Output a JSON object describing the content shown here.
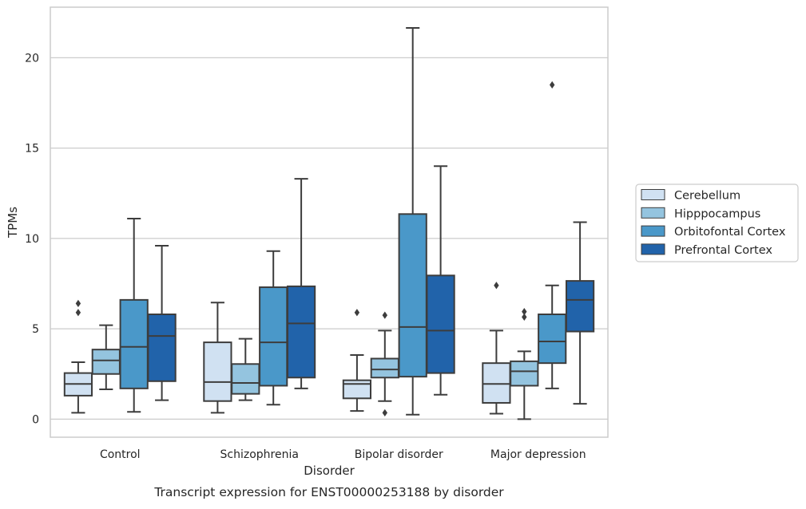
{
  "chart_data": {
    "type": "boxplot",
    "title": "",
    "caption": "Transcript expression for ENST00000253188 by disorder",
    "xlabel": "Disorder",
    "ylabel": "TPMs",
    "ylim": [
      -1.0,
      22.8
    ],
    "yticks": [
      0,
      5,
      10,
      15,
      20
    ],
    "grid": "horizontal",
    "legend_position": "right",
    "categories": [
      "Control",
      "Schizophrenia",
      "Bipolar disorder",
      "Major depression"
    ],
    "series": [
      {
        "name": "Cerebellum",
        "color": "#d0e1f2",
        "boxes": [
          {
            "whisker_low": 0.35,
            "q1": 1.3,
            "median": 1.95,
            "q3": 2.55,
            "whisker_high": 3.15,
            "outliers": [
              5.9,
              6.4
            ]
          },
          {
            "whisker_low": 0.35,
            "q1": 1.0,
            "median": 2.05,
            "q3": 4.25,
            "whisker_high": 6.45,
            "outliers": []
          },
          {
            "whisker_low": 0.45,
            "q1": 1.15,
            "median": 1.95,
            "q3": 2.15,
            "whisker_high": 3.55,
            "outliers": [
              5.9
            ]
          },
          {
            "whisker_low": 0.3,
            "q1": 0.9,
            "median": 1.95,
            "q3": 3.1,
            "whisker_high": 4.9,
            "outliers": [
              7.4
            ]
          }
        ]
      },
      {
        "name": "Hipppocampus",
        "color": "#94c4df",
        "boxes": [
          {
            "whisker_low": 1.65,
            "q1": 2.5,
            "median": 3.25,
            "q3": 3.85,
            "whisker_high": 5.2,
            "outliers": []
          },
          {
            "whisker_low": 1.05,
            "q1": 1.4,
            "median": 2.0,
            "q3": 3.05,
            "whisker_high": 4.45,
            "outliers": []
          },
          {
            "whisker_low": 1.0,
            "q1": 2.3,
            "median": 2.75,
            "q3": 3.35,
            "whisker_high": 4.9,
            "outliers": [
              0.35,
              5.75
            ]
          },
          {
            "whisker_low": 0.0,
            "q1": 1.85,
            "median": 2.65,
            "q3": 3.2,
            "whisker_high": 3.75,
            "outliers": [
              5.65,
              5.95
            ]
          }
        ]
      },
      {
        "name": "Orbitofontal Cortex",
        "color": "#4a98c9",
        "boxes": [
          {
            "whisker_low": 0.4,
            "q1": 1.7,
            "median": 4.0,
            "q3": 6.6,
            "whisker_high": 11.1,
            "outliers": []
          },
          {
            "whisker_low": 0.8,
            "q1": 1.85,
            "median": 4.25,
            "q3": 7.3,
            "whisker_high": 9.3,
            "outliers": []
          },
          {
            "whisker_low": 0.25,
            "q1": 2.35,
            "median": 5.1,
            "q3": 11.35,
            "whisker_high": 21.65,
            "outliers": []
          },
          {
            "whisker_low": 1.7,
            "q1": 3.1,
            "median": 4.3,
            "q3": 5.8,
            "whisker_high": 7.4,
            "outliers": [
              18.5
            ]
          }
        ]
      },
      {
        "name": "Prefrontal Cortex",
        "color": "#2163aa",
        "boxes": [
          {
            "whisker_low": 1.05,
            "q1": 2.1,
            "median": 4.6,
            "q3": 5.8,
            "whisker_high": 9.6,
            "outliers": []
          },
          {
            "whisker_low": 1.7,
            "q1": 2.3,
            "median": 5.3,
            "q3": 7.35,
            "whisker_high": 13.3,
            "outliers": []
          },
          {
            "whisker_low": 1.35,
            "q1": 2.55,
            "median": 4.9,
            "q3": 7.95,
            "whisker_high": 14.0,
            "outliers": []
          },
          {
            "whisker_low": 0.85,
            "q1": 4.85,
            "median": 6.6,
            "q3": 7.65,
            "whisker_high": 10.9,
            "outliers": []
          }
        ]
      }
    ]
  }
}
